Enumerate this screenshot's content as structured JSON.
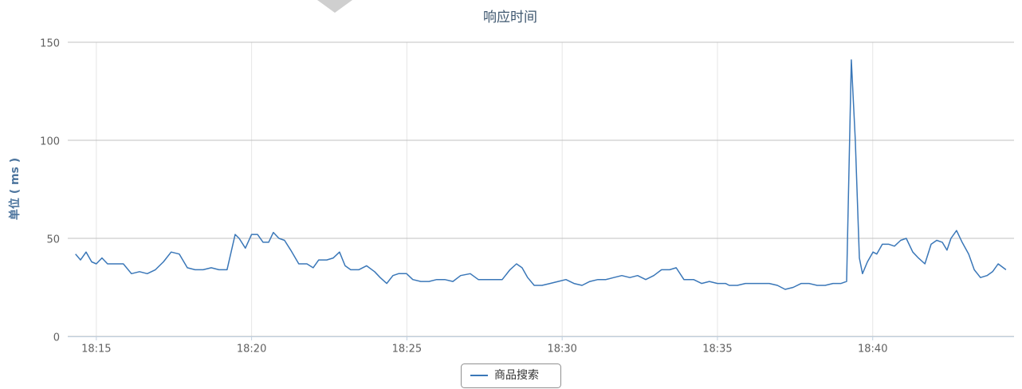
{
  "chart_data": {
    "type": "line",
    "title": "响应时间",
    "y_label": "单位 ( ms )",
    "xlim": [
      1094.08,
      1124.55
    ],
    "xticks": [
      {
        "value": 1095,
        "label": "18:15"
      },
      {
        "value": 1100,
        "label": "18:20"
      },
      {
        "value": 1105,
        "label": "18:25"
      },
      {
        "value": 1110,
        "label": "18:30"
      },
      {
        "value": 1115,
        "label": "18:35"
      },
      {
        "value": 1120,
        "label": "18:40"
      }
    ],
    "ylim": [
      0,
      150
    ],
    "yticks": [
      0,
      50,
      100,
      150
    ],
    "grid": true,
    "legend": "bottom",
    "x": [
      1094.33,
      1094.49,
      1094.67,
      1094.85,
      1095,
      1095.18,
      1095.36,
      1095.62,
      1095.87,
      1096.13,
      1096.39,
      1096.64,
      1096.9,
      1097.16,
      1097.41,
      1097.67,
      1097.93,
      1098.18,
      1098.44,
      1098.7,
      1098.95,
      1099.21,
      1099.47,
      1099.6,
      1099.8,
      1100,
      1100.19,
      1100.37,
      1100.55,
      1100.7,
      1100.88,
      1101.06,
      1101.26,
      1101.52,
      1101.78,
      1101.98,
      1102.16,
      1102.42,
      1102.63,
      1102.83,
      1103.01,
      1103.19,
      1103.45,
      1103.7,
      1103.96,
      1104.14,
      1104.35,
      1104.55,
      1104.73,
      1104.99,
      1105.19,
      1105.45,
      1105.71,
      1105.96,
      1106.22,
      1106.48,
      1106.73,
      1107.04,
      1107.3,
      1107.55,
      1107.81,
      1108.07,
      1108.32,
      1108.53,
      1108.71,
      1108.89,
      1109.1,
      1109.35,
      1109.61,
      1109.87,
      1110.12,
      1110.38,
      1110.64,
      1110.89,
      1111.15,
      1111.41,
      1111.66,
      1111.92,
      1112.18,
      1112.43,
      1112.69,
      1112.95,
      1113.2,
      1113.46,
      1113.67,
      1113.92,
      1114.23,
      1114.49,
      1114.74,
      1115,
      1115.26,
      1115.38,
      1115.64,
      1115.9,
      1116.16,
      1116.41,
      1116.67,
      1116.93,
      1117.18,
      1117.44,
      1117.7,
      1117.95,
      1118.21,
      1118.47,
      1118.72,
      1118.98,
      1119.16,
      1119.31,
      1119.44,
      1119.57,
      1119.67,
      1119.83,
      1120.01,
      1120.13,
      1120.31,
      1120.52,
      1120.7,
      1120.9,
      1121.08,
      1121.29,
      1121.47,
      1121.68,
      1121.88,
      1122.06,
      1122.24,
      1122.39,
      1122.52,
      1122.7,
      1122.88,
      1123.09,
      1123.27,
      1123.47,
      1123.68,
      1123.86,
      1124.04,
      1124.29
    ],
    "series": [
      {
        "name": "商品搜索",
        "color": "#3a77b8",
        "values": [
          42,
          39,
          43,
          38,
          37,
          40,
          37,
          37,
          37,
          32,
          33,
          32,
          34,
          38,
          43,
          42,
          35,
          34,
          34,
          35,
          34,
          34,
          52,
          50,
          45,
          52,
          52,
          48,
          48,
          53,
          50,
          49,
          44,
          37,
          37,
          35,
          39,
          39,
          40,
          43,
          36,
          34,
          34,
          36,
          33,
          30,
          27,
          31,
          32,
          32,
          29,
          28,
          28,
          29,
          29,
          28,
          31,
          32,
          29,
          29,
          29,
          29,
          34,
          37,
          35,
          30,
          26,
          26,
          27,
          28,
          29,
          27,
          26,
          28,
          29,
          29,
          30,
          31,
          30,
          31,
          29,
          31,
          34,
          34,
          35,
          29,
          29,
          27,
          28,
          27,
          27,
          26,
          26,
          27,
          27,
          27,
          27,
          26,
          24,
          25,
          27,
          27,
          26,
          26,
          27,
          27,
          28,
          141,
          100,
          40,
          32,
          38,
          43,
          42,
          47,
          47,
          46,
          49,
          50,
          43,
          40,
          37,
          47,
          49,
          48,
          44,
          50,
          54,
          48,
          42,
          34,
          30,
          31,
          33,
          37,
          34
        ]
      }
    ]
  }
}
